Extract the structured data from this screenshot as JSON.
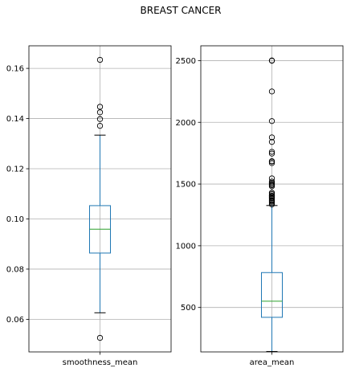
{
  "figure": {
    "title": "BREAST CANCER"
  },
  "chart_data": [
    {
      "type": "box",
      "title": "",
      "categories": [
        "smoothness_mean"
      ],
      "ylim": [
        0.047,
        0.169
      ],
      "yticks": [
        0.06,
        0.08,
        0.1,
        0.12,
        0.14,
        0.16
      ],
      "ytick_labels": [
        "0.06",
        "0.08",
        "0.10",
        "0.12",
        "0.14",
        "0.16"
      ],
      "grid": true,
      "colors": {
        "box": "#1f77b4",
        "median": "#2ca02c",
        "whisker": "#1f77b4",
        "cap": "#000000",
        "grid": "#b0b0b0"
      },
      "boxes": [
        {
          "whisker_low": 0.0626,
          "q1": 0.0864,
          "median": 0.0959,
          "q3": 0.1053,
          "whisker_high": 0.1334,
          "outliers": [
            0.0526,
            0.1371,
            0.1398,
            0.1425,
            0.1447,
            0.1634
          ]
        }
      ]
    },
    {
      "type": "box",
      "title": "",
      "categories": [
        "area_mean"
      ],
      "ylim": [
        140,
        2620
      ],
      "yticks": [
        500,
        1000,
        1500,
        2000,
        2500
      ],
      "ytick_labels": [
        "500",
        "1000",
        "1500",
        "2000",
        "2500"
      ],
      "grid": true,
      "colors": {
        "box": "#1f77b4",
        "median": "#2ca02c",
        "whisker": "#1f77b4",
        "cap": "#000000",
        "grid": "#b0b0b0"
      },
      "boxes": [
        {
          "whisker_low": 143.5,
          "q1": 420.3,
          "median": 551.1,
          "q3": 782.7,
          "whisker_high": 1326,
          "outliers": [
            1335,
            1347,
            1357,
            1364,
            1371,
            1384,
            1386,
            1395,
            1404,
            1407,
            1419,
            1430,
            1482,
            1491,
            1499,
            1509,
            1520,
            1546,
            1670,
            1682,
            1685,
            1747,
            1761,
            1841,
            1878,
            2010,
            2250,
            2499,
            2501
          ]
        }
      ]
    }
  ]
}
